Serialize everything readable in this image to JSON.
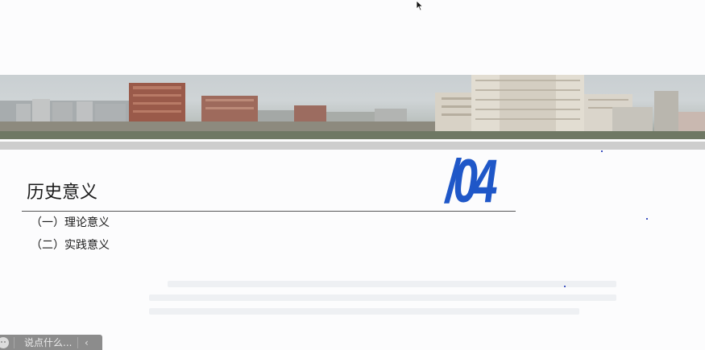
{
  "slide": {
    "section_number": "/04",
    "section_title": "历史意义",
    "items": [
      {
        "label": "（一）理论意义"
      },
      {
        "label": "（二）实践意义"
      }
    ]
  },
  "comment_bar": {
    "placeholder": "说点什么...",
    "collapse_icon": "chevron-left-icon",
    "emoji_icon": "emoji-icon"
  },
  "colors": {
    "accent": "#1f57c8",
    "band": "#cdcdcd",
    "comment_bar_bg": "#8c8c8c"
  }
}
